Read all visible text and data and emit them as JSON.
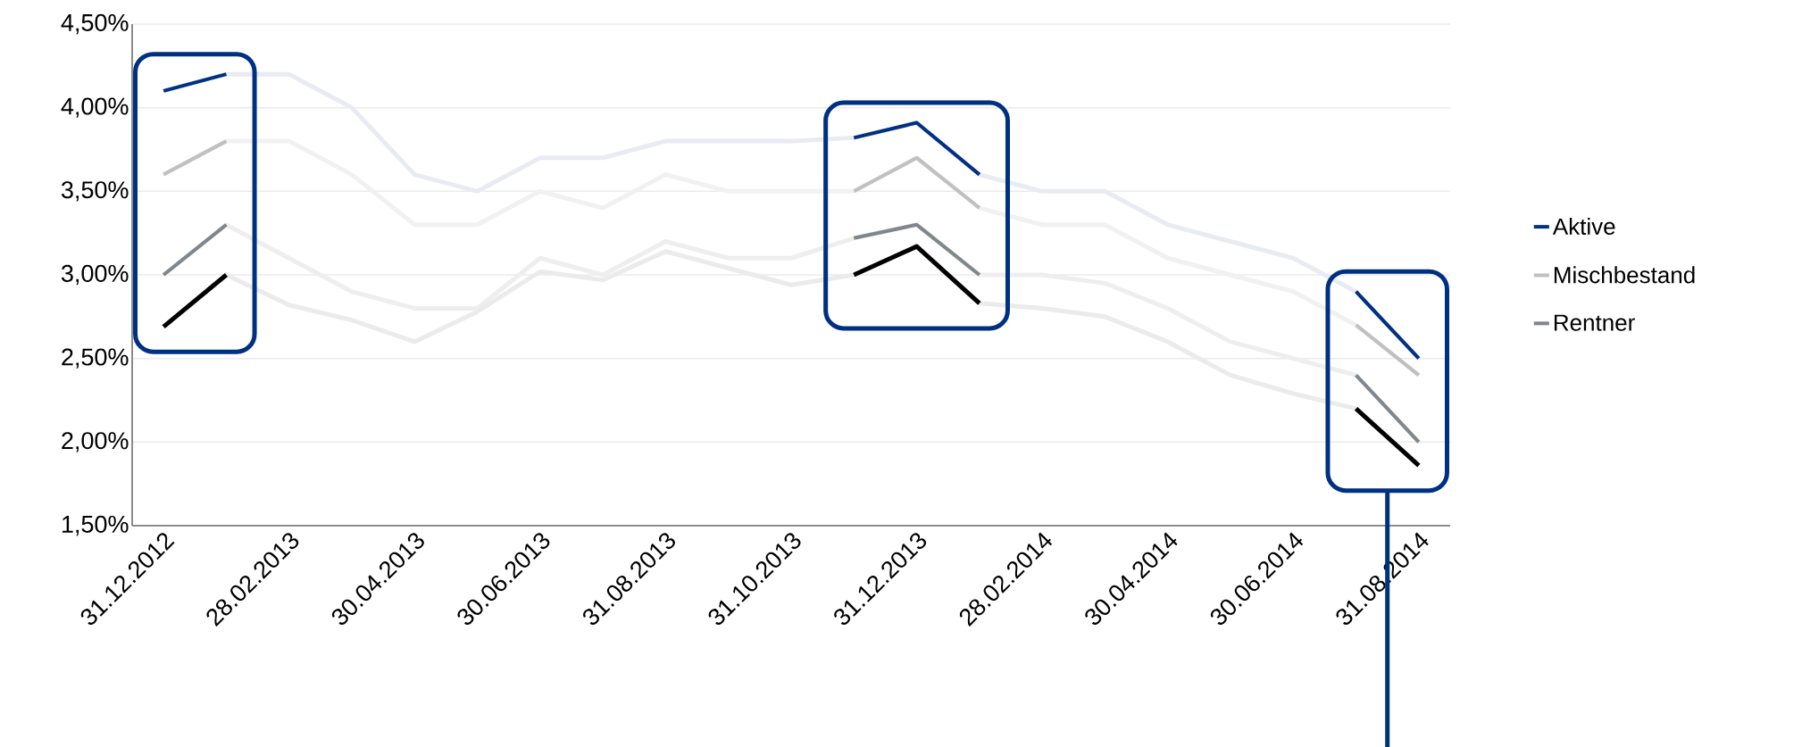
{
  "chart_data": {
    "type": "line",
    "categories": [
      "31.12.2012",
      null,
      "28.02.2013",
      null,
      "30.04.2013",
      null,
      "30.06.2013",
      null,
      "31.08.2013",
      null,
      "31.10.2013",
      null,
      "31.12.2013",
      null,
      "28.02.2014",
      null,
      "30.04.2014",
      null,
      "30.06.2014",
      null,
      "31.08.2014"
    ],
    "ylim": [
      1.5,
      4.5
    ],
    "yticks": [
      {
        "value": 1.5,
        "label": "1,50%"
      },
      {
        "value": 2.0,
        "label": "2,00%"
      },
      {
        "value": 2.5,
        "label": "2,50%"
      },
      {
        "value": 3.0,
        "label": "3,00%"
      },
      {
        "value": 3.5,
        "label": "3,50%"
      },
      {
        "value": 4.0,
        "label": "4,00%"
      },
      {
        "value": 4.5,
        "label": "4,50%"
      }
    ],
    "grid": "y",
    "legend": "right",
    "series": [
      {
        "color": "#e9ebf3",
        "values": [
          4.1,
          4.2,
          4.2,
          4.0,
          3.6,
          3.5,
          3.7,
          3.7,
          3.8,
          3.8,
          3.8,
          3.82,
          3.91,
          3.6,
          3.5,
          3.5,
          3.3,
          3.2,
          3.1,
          2.9,
          2.5
        ]
      },
      {
        "color": "#f1f1f1",
        "values": [
          3.6,
          3.8,
          3.8,
          3.6,
          3.3,
          3.3,
          3.5,
          3.4,
          3.6,
          3.5,
          3.5,
          3.5,
          3.7,
          3.4,
          3.3,
          3.3,
          3.1,
          3.0,
          2.9,
          2.7,
          2.4
        ]
      },
      {
        "color": "#eeeeef",
        "values": [
          3.0,
          3.3,
          3.1,
          2.9,
          2.8,
          2.8,
          3.1,
          3.0,
          3.2,
          3.1,
          3.1,
          3.22,
          3.3,
          3.0,
          3.0,
          2.95,
          2.8,
          2.6,
          2.5,
          2.4,
          2.0
        ]
      },
      {
        "color": "#ebebeb",
        "values": [
          2.69,
          3.0,
          2.82,
          2.73,
          2.6,
          2.78,
          3.02,
          2.97,
          3.14,
          3.04,
          2.94,
          3.0,
          3.17,
          2.83,
          2.8,
          2.75,
          2.6,
          2.4,
          2.29,
          2.2,
          1.86
        ]
      },
      {
        "name": "Aktive",
        "color": "#003082",
        "values": [
          4.1,
          4.2,
          null,
          null,
          null,
          null,
          null,
          null,
          null,
          null,
          null,
          3.82,
          3.91,
          3.6,
          null,
          null,
          null,
          null,
          null,
          2.9,
          2.5
        ]
      },
      {
        "name": "Mischbestand",
        "color": "#c0c0c0",
        "values": [
          3.6,
          3.8,
          null,
          null,
          null,
          null,
          null,
          null,
          null,
          null,
          null,
          3.5,
          3.7,
          3.4,
          null,
          null,
          null,
          null,
          null,
          2.7,
          2.4
        ]
      },
      {
        "name": "Rentner",
        "color": "#7f868c",
        "values": [
          3.0,
          3.3,
          null,
          null,
          null,
          null,
          null,
          null,
          null,
          null,
          null,
          3.22,
          3.3,
          3.0,
          null,
          null,
          null,
          null,
          null,
          2.4,
          2.0
        ]
      },
      {
        "color": "#000000",
        "values": [
          2.69,
          3.0,
          null,
          null,
          null,
          null,
          null,
          null,
          null,
          null,
          null,
          3.0,
          3.17,
          2.83,
          null,
          null,
          null,
          null,
          null,
          2.2,
          1.86
        ]
      }
    ]
  }
}
